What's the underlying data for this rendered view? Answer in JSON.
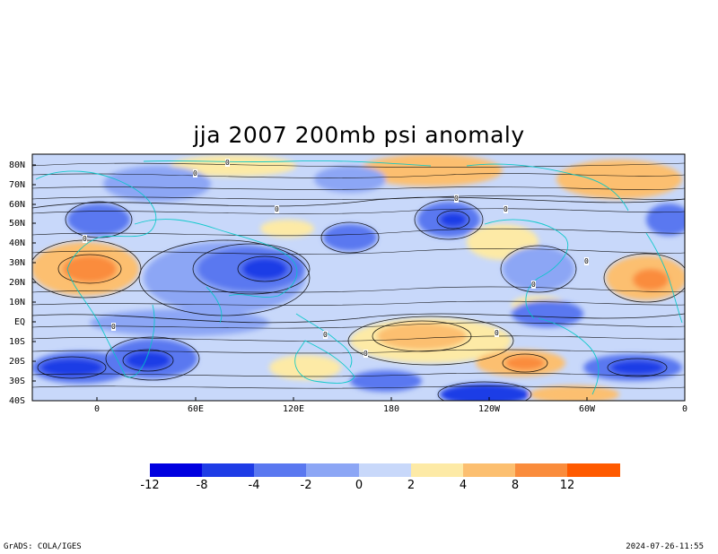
{
  "title": "jja 2007 200mb psi anomaly",
  "lat_labels": [
    "80N",
    "70N",
    "60N",
    "50N",
    "40N",
    "30N",
    "20N",
    "10N",
    "EQ",
    "10S",
    "20S",
    "30S",
    "40S"
  ],
  "lon_labels": [
    "0",
    "60E",
    "120E",
    "180",
    "120W",
    "60W",
    "0"
  ],
  "contour_labels": [
    "0",
    "0",
    "0",
    "0",
    "0",
    "0",
    "0",
    "0",
    "0",
    "0",
    "0",
    "0",
    "0",
    "0"
  ],
  "colorbar": {
    "labels": [
      "-12",
      "-8",
      "-4",
      "-2",
      "0",
      "2",
      "4",
      "8",
      "12"
    ],
    "colors": [
      "#0000e0",
      "#1e3ce6",
      "#5a78f0",
      "#8ca6f5",
      "#c8d8fa",
      "#fdeaa6",
      "#fcbf70",
      "#fa8c3c",
      "#ff5a00"
    ]
  },
  "footer": {
    "left": "GrADS: COLA/IGES",
    "right": "2024-07-26-11:55"
  }
}
